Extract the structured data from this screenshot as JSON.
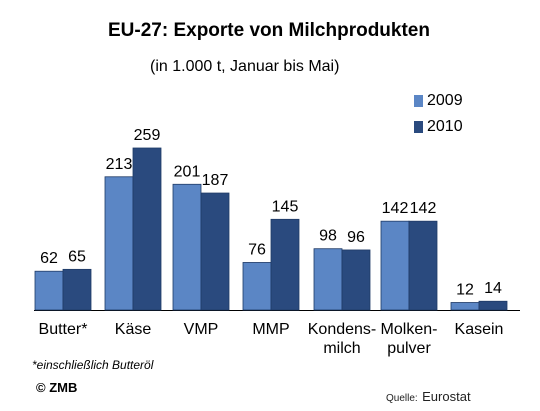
{
  "chart_data": {
    "type": "bar",
    "title": "EU-27: Exporte von Milchprodukten",
    "subtitle": "(in 1.000 t,  Januar bis Mai)",
    "categories": [
      "Butter*",
      "Käse",
      "VMP",
      "MMP",
      "Kondens-\nmilch",
      "Molken-\npulver",
      "Kasein"
    ],
    "series": [
      {
        "name": "2009",
        "values": [
          62,
          213,
          201,
          76,
          98,
          142,
          12
        ],
        "color": "#5b86c5"
      },
      {
        "name": "2010",
        "values": [
          65,
          259,
          187,
          145,
          96,
          142,
          14
        ],
        "color": "#2a4a7e"
      }
    ],
    "ylim": [
      0,
      259
    ],
    "grid": false,
    "legend_position": "top-right"
  },
  "footnote": "*einschließlich Butteröl",
  "copyright": "© ZMB",
  "source": {
    "label": "Quelle:",
    "value": "Eurostat"
  }
}
